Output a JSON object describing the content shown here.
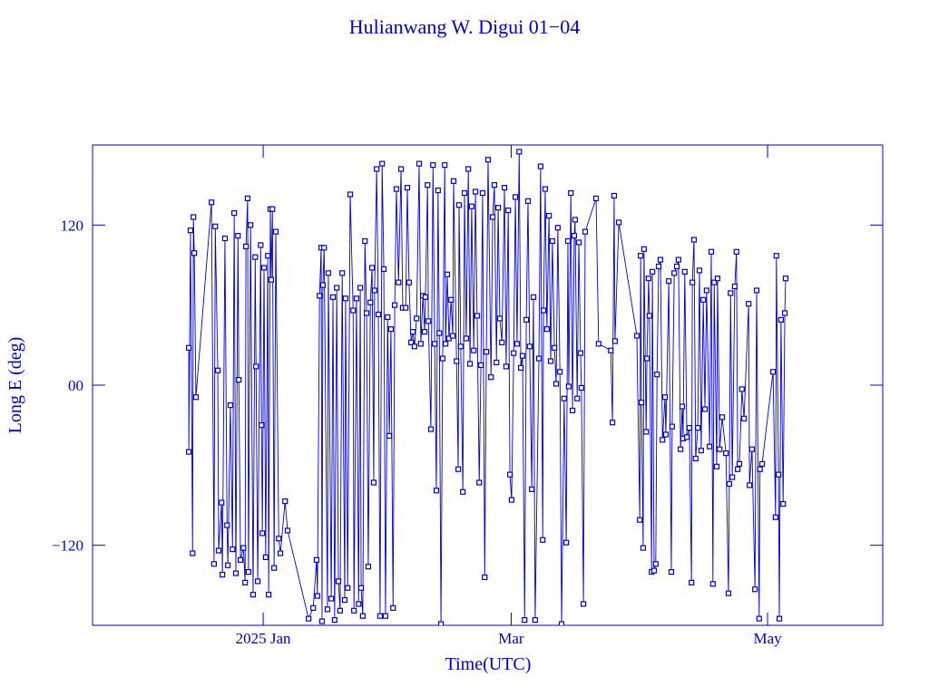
{
  "chart_data": {
    "type": "line",
    "markers": true,
    "title": "Hulianwang W. Digui 01−04",
    "x_label": "Time(UTC)",
    "y_label": "Long E (deg)",
    "color": "#0000cc",
    "xlim": [
      -40.6,
      147.4
    ],
    "xticks": [
      {
        "value": 0,
        "label": "2025 Jan"
      },
      {
        "value": 59,
        "label": "Mar"
      },
      {
        "value": 120,
        "label": "May"
      }
    ],
    "ylim": [
      -180,
      180
    ],
    "yticks": [
      {
        "value": -120,
        "label": "−120"
      },
      {
        "value": 0,
        "label": "00"
      },
      120
    ],
    "x": [
      -17.7,
      -17.7,
      -17.3,
      -16.8,
      -16.6,
      -16.4,
      -16.0,
      -12.3,
      -11.7,
      -11.4,
      -10.8,
      -10.6,
      -9.9,
      -9.7,
      -9.1,
      -8.6,
      -8.4,
      -7.8,
      -7.3,
      -6.9,
      -6.5,
      -6.0,
      -5.8,
      -5.4,
      -4.7,
      -4.3,
      -4.1,
      -3.7,
      -3.5,
      -3.0,
      -2.4,
      -1.9,
      -1.7,
      -1.3,
      -0.6,
      -0.4,
      -0.2,
      0.2,
      0.6,
      1.1,
      1.3,
      1.7,
      1.9,
      2.2,
      2.6,
      3.0,
      3.7,
      4.1,
      5.2,
      5.8,
      10.8,
      11.9,
      12.7,
      12.9,
      13.4,
      13.8,
      14.0,
      14.2,
      14.5,
      15.3,
      15.5,
      16.2,
      16.6,
      17.0,
      17.5,
      17.9,
      18.3,
      18.8,
      19.4,
      19.6,
      20.1,
      20.7,
      21.4,
      21.6,
      22.2,
      22.7,
      23.1,
      23.3,
      23.7,
      24.2,
      24.6,
      25.0,
      25.5,
      25.9,
      26.3,
      26.5,
      27.0,
      27.4,
      27.8,
      28.3,
      28.7,
      29.1,
      29.6,
      30.0,
      30.4,
      30.9,
      31.3,
      31.7,
      32.2,
      32.8,
      33.2,
      33.9,
      34.3,
      34.7,
      35.2,
      35.6,
      36.0,
      36.5,
      37.1,
      37.5,
      38.0,
      38.4,
      38.6,
      39.1,
      39.3,
      39.9,
      40.4,
      40.8,
      41.2,
      41.6,
      41.9,
      42.3,
      42.7,
      43.2,
      43.4,
      43.8,
      44.2,
      44.7,
      45.1,
      45.3,
      46.0,
      46.4,
      46.6,
      47.0,
      47.5,
      47.9,
      48.3,
      48.8,
      49.2,
      49.6,
      50.1,
      50.5,
      50.9,
      51.4,
      51.8,
      52.2,
      52.7,
      53.1,
      53.5,
      54.2,
      54.6,
      55.0,
      55.5,
      55.9,
      56.3,
      56.8,
      57.4,
      57.8,
      58.3,
      58.7,
      59.1,
      59.6,
      60.0,
      60.4,
      60.9,
      61.3,
      61.7,
      62.2,
      62.6,
      63.0,
      63.4,
      63.9,
      64.3,
      64.7,
      65.6,
      66.0,
      66.5,
      66.7,
      67.1,
      67.5,
      68.0,
      68.4,
      68.8,
      69.3,
      69.7,
      70.1,
      70.6,
      71.0,
      71.6,
      72.1,
      72.5,
      72.7,
      73.2,
      73.6,
      74.0,
      74.2,
      74.7,
      75.1,
      75.5,
      75.7,
      76.2,
      76.6,
      79.2,
      79.8,
      82.7,
      83.1,
      83.5,
      83.7,
      84.6,
      88.9,
      89.6,
      89.8,
      90.0,
      90.4,
      90.6,
      91.1,
      91.3,
      91.7,
      91.9,
      92.4,
      92.6,
      93.0,
      93.4,
      93.7,
      94.1,
      94.5,
      95.0,
      95.6,
      95.8,
      96.5,
      97.1,
      97.3,
      97.8,
      98.4,
      98.8,
      99.3,
      99.7,
      99.9,
      100.3,
      100.8,
      101.4,
      101.9,
      102.1,
      102.5,
      102.9,
      103.4,
      103.8,
      104.2,
      104.7,
      105.1,
      105.5,
      106.2,
      106.6,
      107.0,
      107.3,
      107.9,
      108.1,
      108.6,
      109.2,
      110.1,
      110.7,
      110.9,
      111.2,
      111.6,
      112.2,
      112.6,
      112.9,
      113.3,
      113.9,
      114.4,
      115.5,
      115.7,
      116.3,
      117.0,
      117.4,
      118.0,
      118.2,
      118.7,
      121.3,
      121.9,
      122.1,
      122.6,
      122.8,
      123.2,
      123.7,
      124.1,
      124.3
    ],
    "values": [
      28,
      -50,
      116,
      -126,
      126,
      99,
      -9,
      137,
      -134,
      119,
      11,
      -124,
      -88,
      -142,
      110,
      -105,
      -135,
      -15,
      -123,
      129,
      -141,
      112,
      4,
      -131,
      -122,
      -148,
      104,
      140,
      -140,
      120,
      -157,
      96,
      14,
      -147,
      105,
      -30,
      -111,
      88,
      -129,
      97,
      -157,
      132,
      79,
      132,
      -137,
      115,
      -115,
      -126,
      -87,
      -109,
      -175,
      -167,
      -131,
      -158,
      67,
      103,
      -177,
      75,
      103,
      -168,
      84,
      -160,
      66,
      -176,
      73,
      -147,
      -169,
      84,
      -161,
      65,
      -152,
      143,
      56,
      -169,
      65,
      -164,
      73,
      -152,
      -173,
      108,
      54,
      -136,
      62,
      88,
      -73,
      71,
      162,
      53,
      -173,
      166,
      87,
      -173,
      51,
      -38,
      42,
      -167,
      60,
      147,
      77,
      162,
      58,
      58,
      148,
      77,
      32,
      40,
      29,
      50,
      166,
      31,
      67,
      40,
      66,
      150,
      48,
      -33,
      165,
      31,
      -79,
      146,
      39,
      -179,
      20,
      165,
      31,
      83,
      35,
      64,
      37,
      153,
      18,
      -63,
      135,
      29,
      -80,
      144,
      35,
      162,
      16,
      134,
      26,
      145,
      52,
      -73,
      15,
      144,
      -144,
      25,
      169,
      6,
      126,
      150,
      17,
      133,
      50,
      32,
      148,
      14,
      131,
      -67,
      -86,
      24,
      141,
      31,
      175,
      13,
      22,
      -176,
      49,
      138,
      29,
      -78,
      66,
      -176,
      20,
      164,
      -116,
      56,
      147,
      42,
      127,
      18,
      108,
      28,
      1,
      118,
      10,
      -179,
      -10,
      -118,
      108,
      -1,
      144,
      -19,
      112,
      124,
      -10,
      107,
      24,
      -2,
      -164,
      115,
      140,
      31,
      26,
      -28,
      142,
      33,
      122,
      37,
      -101,
      97,
      -13,
      -122,
      102,
      -35,
      20,
      80,
      52,
      -140,
      85,
      -139,
      -134,
      8,
      89,
      94,
      -41,
      -9,
      -37,
      78,
      -140,
      -31,
      84,
      89,
      94,
      -48,
      -16,
      -40,
      85,
      -39,
      -32,
      -148,
      77,
      109,
      -55,
      -32,
      86,
      -49,
      64,
      -18,
      71,
      -46,
      100,
      -149,
      77,
      -61,
      80,
      -48,
      -24,
      -51,
      -156,
      -74,
      69,
      -69,
      74,
      100,
      -63,
      -59,
      -3,
      -25,
      61,
      -75,
      -48,
      -153,
      71,
      -175,
      -63,
      -59,
      10,
      -99,
      97,
      -67,
      -175,
      49,
      -89,
      54,
      80
    ]
  }
}
